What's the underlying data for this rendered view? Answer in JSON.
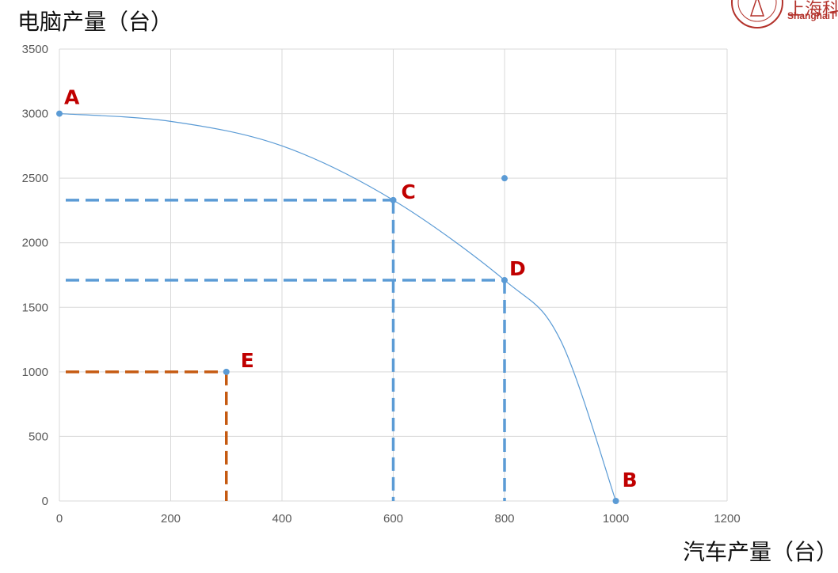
{
  "logo": {
    "name": "logo-emblem-icon",
    "text_cn": "上海科",
    "text_en": "ShanghaiT",
    "color": "#b3322b"
  },
  "chart_data": {
    "type": "scatter",
    "title": "",
    "ylabel": "电脑产量（台）",
    "xlabel": "汽车产量（台）",
    "xlim": [
      0,
      1200
    ],
    "ylim": [
      0,
      3500
    ],
    "xticks": [
      0,
      200,
      400,
      600,
      800,
      1000,
      1200
    ],
    "yticks": [
      0,
      500,
      1000,
      1500,
      2000,
      2500,
      3000,
      3500
    ],
    "grid": true,
    "legend": "none",
    "points": [
      {
        "label": "A",
        "x": 0,
        "y": 3000
      },
      {
        "label": "B",
        "x": 1000,
        "y": 0
      },
      {
        "label": "C",
        "x": 600,
        "y": 2330
      },
      {
        "label": "D",
        "x": 800,
        "y": 1710
      },
      {
        "label": "E",
        "x": 300,
        "y": 1000
      },
      {
        "label": "",
        "x": 800,
        "y": 2500
      }
    ],
    "curve": {
      "description_points": [
        [
          0,
          3000
        ],
        [
          200,
          2940
        ],
        [
          400,
          2750
        ],
        [
          600,
          2330
        ],
        [
          800,
          1710
        ],
        [
          900,
          1250
        ],
        [
          1000,
          0
        ]
      ]
    },
    "guides": [
      {
        "x": 600,
        "y": 2330,
        "color": "#5b9bd5"
      },
      {
        "x": 800,
        "y": 1710,
        "color": "#5b9bd5"
      },
      {
        "x": 300,
        "y": 1000,
        "color": "#c55a11"
      }
    ],
    "colors": {
      "marker": "#5b9bd5",
      "curve": "#5b9bd5",
      "label": "#c00000",
      "grid": "#d9d9d9"
    }
  }
}
